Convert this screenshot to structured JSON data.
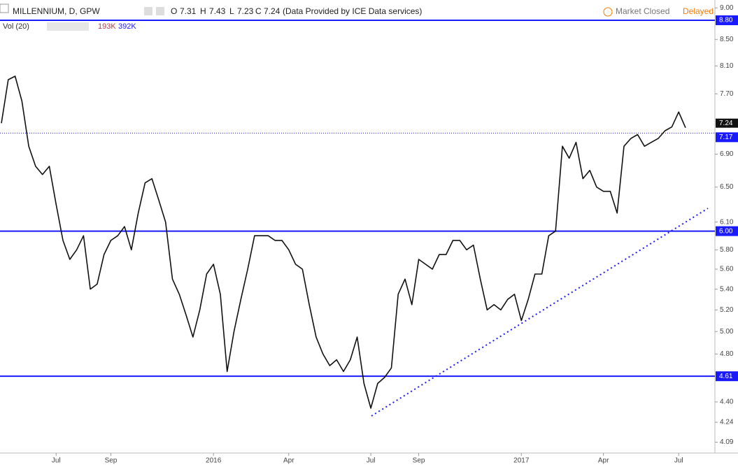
{
  "header": {
    "symbol": "MILLENNIUM, D, GPW",
    "o_label": "O",
    "open": "7.31",
    "h_label": "H",
    "high": "7.43",
    "l_label": "L",
    "low": "7.23",
    "c_label": "C",
    "close": "7.24",
    "source": "(Data Provided by ICE Data services)",
    "status": "Market Closed",
    "delay": "Delayed",
    "volume_name": "Vol (20)",
    "volume": "193K",
    "volume_ma": "392K"
  },
  "chart_data": {
    "type": "line",
    "log_scale": true,
    "grid": false,
    "color": "#111111",
    "categories": [
      null,
      null,
      null,
      null,
      null,
      null,
      null,
      null,
      "Jul",
      null,
      null,
      null,
      null,
      null,
      null,
      null,
      "Sep",
      null,
      null,
      null,
      null,
      null,
      null,
      null,
      null,
      null,
      null,
      null,
      null,
      null,
      null,
      "2016",
      null,
      null,
      null,
      null,
      null,
      null,
      null,
      null,
      null,
      null,
      "Apr",
      null,
      null,
      null,
      null,
      null,
      null,
      null,
      null,
      null,
      null,
      null,
      "Jul",
      null,
      null,
      null,
      null,
      null,
      null,
      "Sep",
      null,
      null,
      null,
      null,
      null,
      null,
      null,
      null,
      null,
      null,
      null,
      null,
      null,
      null,
      "2017",
      null,
      null,
      null,
      null,
      null,
      null,
      null,
      null,
      null,
      null,
      null,
      "Apr",
      null,
      null,
      null,
      null,
      null,
      null,
      null,
      null,
      null,
      null,
      "Jul",
      null
    ],
    "values": [
      7.3,
      7.9,
      7.95,
      7.6,
      7.0,
      6.75,
      6.65,
      6.75,
      6.3,
      5.9,
      5.7,
      5.8,
      5.95,
      5.4,
      5.45,
      5.75,
      5.9,
      5.95,
      6.05,
      5.8,
      6.2,
      6.55,
      6.6,
      6.35,
      6.1,
      5.5,
      5.35,
      5.15,
      4.95,
      5.2,
      5.55,
      5.65,
      5.35,
      4.65,
      5.0,
      5.3,
      5.6,
      5.95,
      5.95,
      5.95,
      5.9,
      5.9,
      5.8,
      5.65,
      5.6,
      5.25,
      4.95,
      4.8,
      4.7,
      4.75,
      4.65,
      4.75,
      4.95,
      4.55,
      4.35,
      4.55,
      4.6,
      4.68,
      5.35,
      5.5,
      5.25,
      5.7,
      5.65,
      5.6,
      5.75,
      5.75,
      5.9,
      5.9,
      5.8,
      5.85,
      5.5,
      5.2,
      5.25,
      5.2,
      5.3,
      5.35,
      5.1,
      5.3,
      5.55,
      5.55,
      5.95,
      6.0,
      7.0,
      6.85,
      7.05,
      6.6,
      6.7,
      6.5,
      6.45,
      6.45,
      6.2,
      7.0,
      7.1,
      7.15,
      7.0,
      7.05,
      7.1,
      7.2,
      7.25,
      7.45,
      7.24
    ],
    "ylim": [
      4.01,
      9.13
    ],
    "yticks": [
      {
        "value": 9.0,
        "label": "9.00"
      },
      {
        "value": 8.5,
        "label": "8.50"
      },
      {
        "value": 8.1,
        "label": "8.10"
      },
      {
        "value": 7.7,
        "label": "7.70"
      },
      {
        "value": 6.9,
        "label": "6.90"
      },
      {
        "value": 6.5,
        "label": "6.50"
      },
      {
        "value": 6.1,
        "label": "6.10"
      },
      {
        "value": 5.8,
        "label": "5.80"
      },
      {
        "value": 5.6,
        "label": "5.60"
      },
      {
        "value": 5.4,
        "label": "5.40"
      },
      {
        "value": 5.2,
        "label": "5.20"
      },
      {
        "value": 5.0,
        "label": "5.00"
      },
      {
        "value": 4.8,
        "label": "4.80"
      },
      {
        "value": 4.4,
        "label": "4.40"
      },
      {
        "value": 4.24,
        "label": "4.24"
      },
      {
        "value": 4.09,
        "label": "4.09"
      }
    ],
    "price_lines": [
      {
        "value": 8.8,
        "label": "8.80"
      },
      {
        "value": 6.0,
        "label": "6.00"
      },
      {
        "value": 4.61,
        "label": "4.61"
      }
    ],
    "price_line_color": "#1a1aff",
    "last_price": {
      "value": 7.24,
      "label": "7.24"
    },
    "reference_line": {
      "value": 7.17,
      "label": "7.17"
    }
  }
}
